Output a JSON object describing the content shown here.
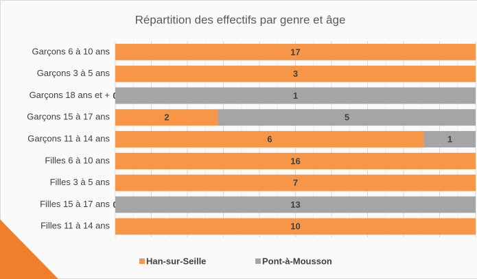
{
  "chart_data": {
    "type": "stacked_bar_100",
    "title": "Répartition des effectifs par genre et âge",
    "categories": [
      "Garçons 6 à 10 ans",
      "Garçons 3 à 5 ans",
      "Garçons 18 ans et +",
      "Garçons 15 à 17 ans",
      "Garçons 11 à 14 ans",
      "Filles 6 à 10 ans",
      "Filles 3 à 5 ans",
      "Filles 15 à 17 ans",
      "Filles 11 à 14 ans"
    ],
    "series": [
      {
        "name": "Han-sur-Seille",
        "color": "#f79646",
        "values": [
          17,
          3,
          0,
          2,
          6,
          16,
          7,
          0,
          10
        ]
      },
      {
        "name": "Pont-à-Mousson",
        "color": "#a5a5a5",
        "values": [
          null,
          null,
          1,
          5,
          1,
          null,
          null,
          13,
          null
        ]
      }
    ],
    "grid": true
  }
}
